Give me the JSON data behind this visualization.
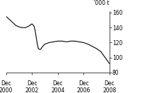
{
  "title": "",
  "ylabel": "’000 t",
  "ylim": [
    80,
    162
  ],
  "yticks": [
    80,
    100,
    120,
    140,
    160
  ],
  "xlim": [
    0,
    96
  ],
  "xtick_positions": [
    0,
    24,
    48,
    72,
    96
  ],
  "xtick_labels_line1": [
    "Dec",
    "Dec",
    "Dec",
    "Dec",
    "Dec"
  ],
  "xtick_labels_line2": [
    "2000",
    "2002",
    "2004",
    "2006",
    "2008"
  ],
  "line_color": "#000000",
  "background_color": "#ffffff",
  "x": [
    0,
    3,
    6,
    9,
    12,
    15,
    18,
    21,
    24,
    26,
    27,
    28,
    29,
    30,
    31,
    32,
    34,
    36,
    40,
    44,
    48,
    52,
    56,
    60,
    64,
    68,
    72,
    76,
    80,
    84,
    88,
    92,
    96
  ],
  "y": [
    155,
    151,
    147,
    143,
    141,
    140,
    140,
    142,
    145,
    142,
    136,
    127,
    118,
    112,
    111,
    111,
    115,
    118,
    120,
    121,
    122,
    122,
    121,
    122,
    122,
    121,
    120,
    118,
    115,
    112,
    108,
    100,
    92
  ]
}
